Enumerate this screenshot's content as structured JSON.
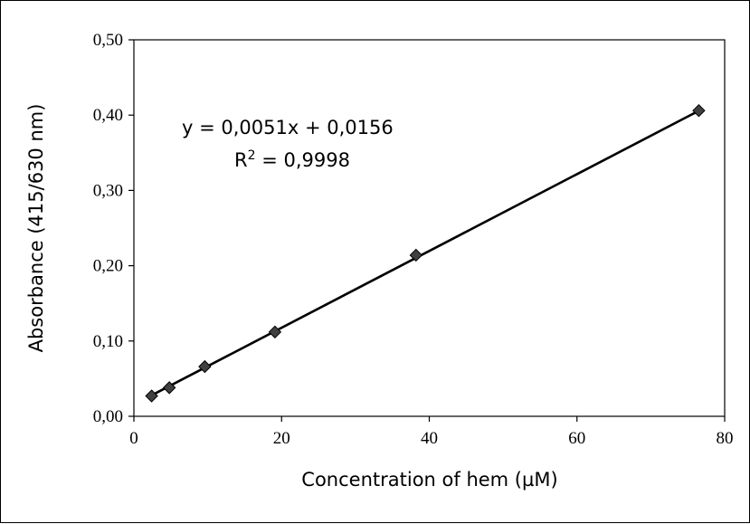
{
  "chart_data": {
    "type": "scatter",
    "xlabel": "Concentration of hem (µM)",
    "ylabel": "Absorbance (415/630 nm)",
    "xlim": [
      0,
      80
    ],
    "ylim": [
      0,
      0.5
    ],
    "x_ticks": [
      0,
      20,
      40,
      60,
      80
    ],
    "x_tick_labels": [
      "0",
      "20",
      "40",
      "60",
      "80"
    ],
    "y_ticks": [
      0,
      0.1,
      0.2,
      0.3,
      0.4,
      0.5
    ],
    "y_tick_labels": [
      "0,00",
      "0,10",
      "0,20",
      "0,30",
      "0,40",
      "0,50"
    ],
    "grid": false,
    "legend": "none",
    "series": [
      {
        "x": [
          2.4,
          4.8,
          9.6,
          19.1,
          38.2,
          76.5
        ],
        "y": [
          0.027,
          0.038,
          0.066,
          0.112,
          0.214,
          0.406
        ],
        "marker": "diamond",
        "marker_color": "#404040"
      }
    ],
    "trendline": {
      "slope": 0.0051,
      "intercept": 0.0156,
      "x_range": [
        2.4,
        76.5
      ],
      "color": "#000000"
    },
    "annotations": {
      "equation": "y = 0,0051x + 0,0156",
      "r_squared_prefix": "R",
      "r_squared_sup": "2",
      "r_squared_suffix": " = 0,9998"
    }
  }
}
